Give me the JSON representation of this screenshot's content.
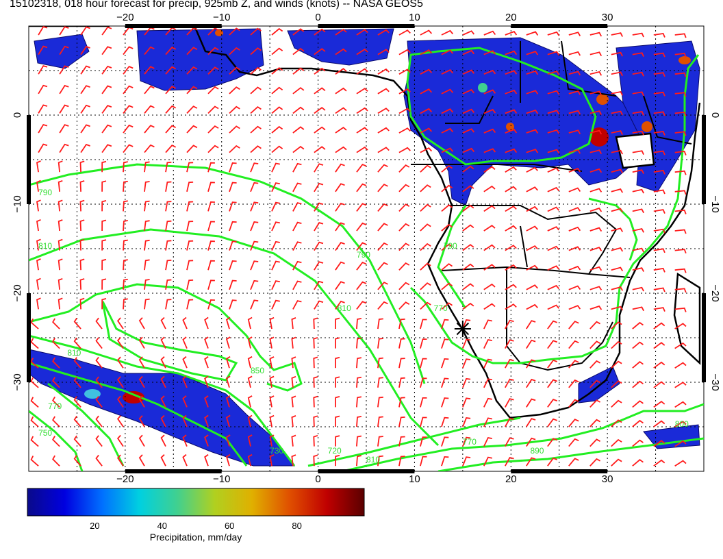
{
  "title": "15102318, 018 hour forecast for precip, 925mb Z, and winds (knots) -- NASA GEOS5",
  "map": {
    "lon_range": [
      -30,
      40
    ],
    "lat_range": [
      -40,
      10
    ],
    "lon_ticks": [
      {
        "value": -20,
        "label": "−20"
      },
      {
        "value": -10,
        "label": "−10"
      },
      {
        "value": 0,
        "label": "0"
      },
      {
        "value": 10,
        "label": "10"
      },
      {
        "value": 20,
        "label": "20"
      },
      {
        "value": 30,
        "label": "30"
      }
    ],
    "lat_ticks": [
      {
        "value": 0,
        "label": "0"
      },
      {
        "value": -10,
        "label": "−10"
      },
      {
        "value": -20,
        "label": "−20"
      },
      {
        "value": -30,
        "label": "−30"
      }
    ],
    "grid": true,
    "colors": {
      "wind_barbs": "#ff1a1a",
      "contours": "#22ee22",
      "coastlines": "#000000",
      "ocean": "#ffffff"
    },
    "marker": {
      "name": "station-marker",
      "lon": 15,
      "lat": -24
    }
  },
  "contour_labels": [
    {
      "text": "790",
      "lon": -29,
      "lat": -9
    },
    {
      "text": "810",
      "lon": -29,
      "lat": -15
    },
    {
      "text": "790",
      "lon": 4,
      "lat": -16
    },
    {
      "text": "810",
      "lon": 2,
      "lat": -22
    },
    {
      "text": "810",
      "lon": -26,
      "lat": -27
    },
    {
      "text": "850",
      "lon": -7,
      "lat": -29
    },
    {
      "text": "770",
      "lon": -28,
      "lat": -33
    },
    {
      "text": "750",
      "lon": -29,
      "lat": -36
    },
    {
      "text": "770",
      "lon": 12,
      "lat": -22
    },
    {
      "text": "790",
      "lon": 13,
      "lat": -15
    },
    {
      "text": "730",
      "lon": -5,
      "lat": -38
    },
    {
      "text": "720",
      "lon": 1,
      "lat": -38
    },
    {
      "text": "770",
      "lon": 15,
      "lat": -37
    },
    {
      "text": "890",
      "lon": 22,
      "lat": -38
    },
    {
      "text": "810",
      "lon": 5,
      "lat": -39
    },
    {
      "text": "800",
      "lon": 37,
      "lat": -35
    }
  ],
  "colorbar": {
    "label": "Precipitation, mm/day",
    "min": 0,
    "max": 100,
    "ticks": [
      {
        "value": 20,
        "label": "20"
      },
      {
        "value": 40,
        "label": "40"
      },
      {
        "value": 60,
        "label": "60"
      },
      {
        "value": 80,
        "label": "80"
      }
    ],
    "stops": [
      "#0a0a8a",
      "#0000e0",
      "#0070ff",
      "#00d0e0",
      "#40d090",
      "#b0d020",
      "#e0b000",
      "#e05000",
      "#c00000",
      "#5a0000"
    ]
  }
}
